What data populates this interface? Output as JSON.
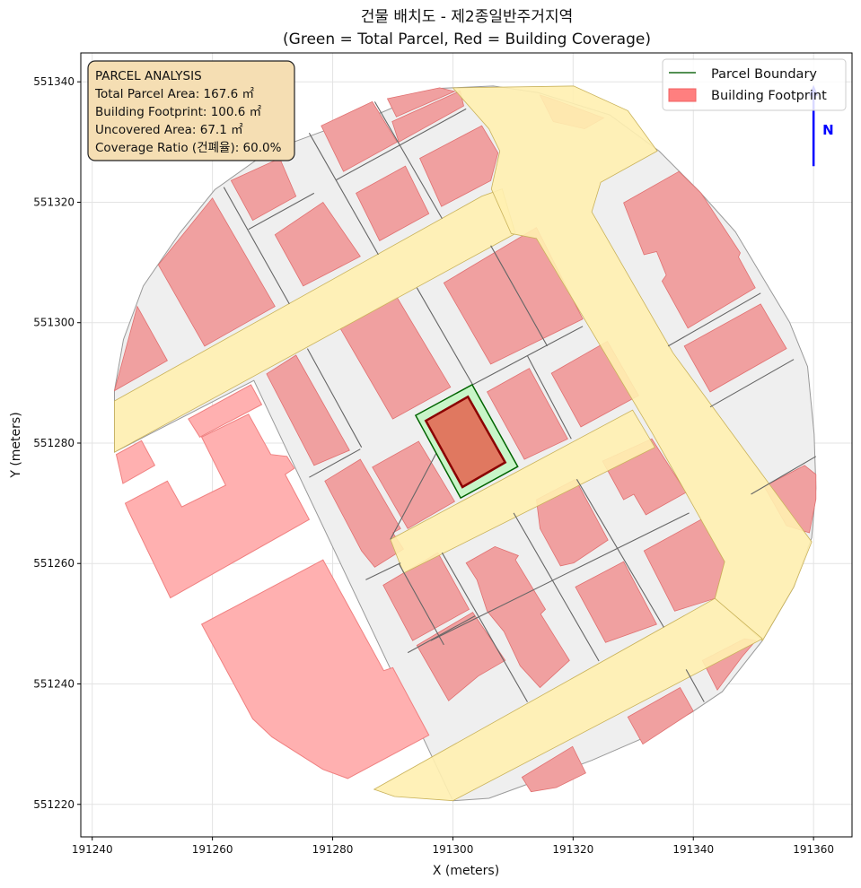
{
  "chart_data": {
    "type": "map-polygons",
    "title": "건물 배치도 - 제2종일반주거지역",
    "subtitle": "(Green = Total Parcel, Red = Building Coverage)",
    "xlabel": "X (meters)",
    "ylabel": "Y (meters)",
    "xlim": [
      191238.1,
      191366.4
    ],
    "ylim": [
      551214.6,
      551344.8
    ],
    "xticks": [
      191240,
      191260,
      191280,
      191300,
      191320,
      191340,
      191360
    ],
    "yticks": [
      551220,
      551240,
      551260,
      551280,
      551300,
      551320,
      551340
    ],
    "grid": true,
    "origin": [
      191240,
      551220
    ],
    "coords_note": "polygon vertices are meter offsets from origin",
    "legend": {
      "placement": "top-right",
      "entries": [
        {
          "label": "Parcel Boundary",
          "color": "#1a6b1a",
          "kind": "line"
        },
        {
          "label": "Building Footprint",
          "color": "#ff7f7f",
          "kind": "patch"
        }
      ]
    },
    "info_box": {
      "placement": "top-left",
      "lines": [
        "PARCEL ANALYSIS",
        "Total Parcel Area: 167.6 ㎡",
        "Building Footprint: 100.6 ㎡",
        "Uncovered Area: 67.1 ㎡",
        "Coverage Ratio (건폐율): 60.0%"
      ]
    },
    "north_arrow": {
      "label": "N",
      "x": 191360,
      "y_from": 551326,
      "y_to": 551338,
      "color": "#0000ff"
    },
    "colors": {
      "parcels_fill": "#efefef",
      "road_fill": "#fff0b0",
      "road_edge": "#c9b25a",
      "building_fill": "#f0a0a0",
      "building_edge": "#e07070",
      "outside_building_fill": "#ffb0b0",
      "parcel_line": "#666666",
      "subject_parcel_fill": "#c8f5c8",
      "subject_parcel_edge": "#006400",
      "subject_building_fill": "#e07860",
      "subject_building_edge": "#8b0000"
    },
    "parcel_area": [
      [
        3.7,
        68.7
      ],
      [
        5.2,
        77.2
      ],
      [
        8.5,
        86.1
      ],
      [
        14.5,
        94.8
      ],
      [
        20.4,
        102.1
      ],
      [
        29.4,
        108.5
      ],
      [
        38.4,
        111.8
      ],
      [
        48.1,
        114.9
      ],
      [
        57.5,
        118.9
      ],
      [
        66.7,
        119.3
      ],
      [
        74.2,
        118.2
      ],
      [
        86.1,
        114.5
      ],
      [
        94.3,
        108.5
      ],
      [
        101.0,
        101.8
      ],
      [
        107.0,
        95.1
      ],
      [
        111.5,
        87.6
      ],
      [
        116.0,
        80.1
      ],
      [
        119.0,
        72.7
      ],
      [
        120.1,
        61.5
      ],
      [
        120.4,
        52.5
      ],
      [
        119.7,
        44.3
      ],
      [
        116.7,
        36.1
      ],
      [
        111.5,
        27.2
      ],
      [
        104.8,
        18.7
      ],
      [
        99.6,
        15.2
      ],
      [
        92.1,
        11.2
      ],
      [
        83.1,
        7.3
      ],
      [
        74.2,
        4.0
      ],
      [
        66.0,
        1.0
      ],
      [
        60.0,
        0.6
      ],
      [
        26.9,
        70.4
      ],
      [
        3.7,
        58.5
      ]
    ],
    "roads": [
      [
        [
          3.7,
          67.0
        ],
        [
          64.8,
          101.0
        ],
        [
          68.2,
          102.2
        ],
        [
          70.4,
          94.8
        ],
        [
          3.7,
          58.5
        ]
      ],
      [
        [
          60.0,
          119.0
        ],
        [
          80.1,
          119.3
        ],
        [
          89.1,
          115.2
        ],
        [
          94.0,
          108.5
        ],
        [
          84.6,
          103.3
        ],
        [
          83.1,
          98.4
        ],
        [
          96.6,
          75.0
        ],
        [
          119.7,
          43.6
        ],
        [
          116.7,
          36.1
        ],
        [
          111.5,
          27.2
        ],
        [
          103.6,
          34.2
        ],
        [
          105.2,
          40.3
        ],
        [
          93.1,
          61.8
        ],
        [
          73.9,
          94.0
        ],
        [
          69.7,
          94.8
        ],
        [
          66.4,
          102.2
        ],
        [
          67.8,
          108.5
        ],
        [
          66.0,
          112.2
        ]
      ],
      [
        [
          49.6,
          44.0
        ],
        [
          89.9,
          65.5
        ],
        [
          93.6,
          59.3
        ],
        [
          51.8,
          38.4
        ]
      ],
      [
        [
          46.9,
          2.5
        ],
        [
          103.6,
          34.2
        ],
        [
          111.5,
          27.5
        ],
        [
          60.0,
          0.6
        ],
        [
          50.3,
          1.3
        ]
      ]
    ],
    "parcel_lines": [
      [
        [
          21.9,
          102.5
        ],
        [
          32.8,
          83.1
        ]
      ],
      [
        [
          36.1,
          111.5
        ],
        [
          47.6,
          91.3
        ]
      ],
      [
        [
          47.0,
          116.7
        ],
        [
          58.2,
          97.3
        ]
      ],
      [
        [
          26.0,
          95.5
        ],
        [
          36.9,
          101.5
        ]
      ],
      [
        [
          40.6,
          103.7
        ],
        [
          62.2,
          115.5
        ]
      ],
      [
        [
          35.8,
          75.7
        ],
        [
          44.8,
          59.3
        ]
      ],
      [
        [
          54.0,
          85.8
        ],
        [
          63.3,
          69.7
        ]
      ],
      [
        [
          66.3,
          92.8
        ],
        [
          75.7,
          76.1
        ]
      ],
      [
        [
          63.3,
          69.7
        ],
        [
          81.6,
          79.4
        ]
      ],
      [
        [
          72.4,
          74.5
        ],
        [
          79.7,
          60.7
        ]
      ],
      [
        [
          95.8,
          76.1
        ],
        [
          111.2,
          84.9
        ]
      ],
      [
        [
          102.8,
          66.0
        ],
        [
          116.7,
          73.9
        ]
      ],
      [
        [
          70.1,
          48.4
        ],
        [
          84.3,
          23.8
        ]
      ],
      [
        [
          80.6,
          54.0
        ],
        [
          95.1,
          29.4
        ]
      ],
      [
        [
          58.2,
          41.8
        ],
        [
          72.4,
          17.0
        ]
      ],
      [
        [
          56.3,
          27.2
        ],
        [
          99.3,
          48.4
        ]
      ],
      [
        [
          109.6,
          51.5
        ],
        [
          120.4,
          57.8
        ]
      ],
      [
        [
          98.8,
          22.4
        ],
        [
          101.8,
          17.0
        ]
      ],
      [
        [
          36.1,
          54.3
        ],
        [
          44.6,
          59.0
        ]
      ],
      [
        [
          45.5,
          37.3
        ],
        [
          51.3,
          40.1
        ]
      ],
      [
        [
          52.5,
          25.2
        ],
        [
          63.7,
          31.3
        ]
      ],
      [
        [
          49.6,
          44.0
        ],
        [
          63.3,
          69.7
        ]
      ],
      [
        [
          51.0,
          40.0
        ],
        [
          58.5,
          26.5
        ]
      ]
    ],
    "buildings": [
      [
        [
          3.7,
          68.7
        ],
        [
          7.5,
          82.7
        ],
        [
          12.5,
          73.7
        ]
      ],
      [
        [
          11.0,
          89.6
        ],
        [
          20.0,
          100.7
        ],
        [
          30.4,
          82.7
        ],
        [
          18.7,
          76.1
        ]
      ],
      [
        [
          23.1,
          103.6
        ],
        [
          31.2,
          107.3
        ],
        [
          33.9,
          101.0
        ],
        [
          26.7,
          97.0
        ]
      ],
      [
        [
          30.4,
          94.6
        ],
        [
          38.4,
          100.0
        ],
        [
          44.6,
          91.0
        ],
        [
          35.1,
          86.1
        ]
      ],
      [
        [
          38.1,
          112.7
        ],
        [
          46.6,
          116.7
        ],
        [
          50.7,
          110.0
        ],
        [
          41.8,
          105.1
        ]
      ],
      [
        [
          49.1,
          117.2
        ],
        [
          57.8,
          119.0
        ],
        [
          60.3,
          118.4
        ],
        [
          50.6,
          114.2
        ]
      ],
      [
        [
          49.9,
          113.4
        ],
        [
          61.2,
          118.5
        ],
        [
          61.8,
          116.0
        ],
        [
          51.0,
          110.0
        ]
      ],
      [
        [
          54.5,
          107.3
        ],
        [
          64.8,
          112.7
        ],
        [
          67.5,
          108.2
        ],
        [
          66.3,
          103.6
        ],
        [
          58.1,
          99.3
        ]
      ],
      [
        [
          43.9,
          101.5
        ],
        [
          52.1,
          106.0
        ],
        [
          56.0,
          98.1
        ],
        [
          47.8,
          93.6
        ]
      ],
      [
        [
          88.4,
          99.9
        ],
        [
          97.6,
          105.1
        ],
        [
          101.3,
          101.5
        ],
        [
          107.8,
          91.6
        ],
        [
          107.5,
          90.9
        ],
        [
          110.3,
          85.8
        ],
        [
          99.1,
          79.1
        ],
        [
          94.8,
          86.9
        ],
        [
          95.5,
          87.9
        ],
        [
          93.9,
          91.8
        ],
        [
          91.8,
          91.3
        ]
      ],
      [
        [
          98.5,
          76.1
        ],
        [
          111.2,
          83.1
        ],
        [
          115.5,
          75.7
        ],
        [
          102.8,
          68.5
        ]
      ],
      [
        [
          74.5,
          117.8
        ],
        [
          76.4,
          117.2
        ],
        [
          85.1,
          114.0
        ],
        [
          81.9,
          112.2
        ],
        [
          76.7,
          113.4
        ]
      ],
      [
        [
          41.3,
          79.0
        ],
        [
          50.7,
          84.2
        ],
        [
          59.6,
          69.3
        ],
        [
          50.0,
          64.0
        ]
      ],
      [
        [
          58.5,
          86.6
        ],
        [
          73.9,
          95.8
        ],
        [
          81.6,
          80.6
        ],
        [
          66.3,
          73.1
        ]
      ],
      [
        [
          29.0,
          71.5
        ],
        [
          33.9,
          74.6
        ],
        [
          42.8,
          58.8
        ],
        [
          36.9,
          56.3
        ]
      ],
      [
        [
          65.7,
          68.5
        ],
        [
          72.7,
          72.4
        ],
        [
          79.1,
          60.7
        ],
        [
          71.9,
          57.3
        ]
      ],
      [
        [
          76.4,
          71.6
        ],
        [
          85.7,
          76.9
        ],
        [
          90.9,
          67.9
        ],
        [
          81.3,
          62.7
        ]
      ],
      [
        [
          38.7,
          53.7
        ],
        [
          44.6,
          57.3
        ],
        [
          51.3,
          45.8
        ],
        [
          50.0,
          45.1
        ],
        [
          51.8,
          42.4
        ],
        [
          47.0,
          39.4
        ],
        [
          44.8,
          42.1
        ]
      ],
      [
        [
          46.6,
          56.0
        ],
        [
          54.3,
          60.3
        ],
        [
          60.3,
          50.3
        ],
        [
          52.5,
          45.8
        ]
      ],
      [
        [
          48.4,
          36.4
        ],
        [
          57.5,
          41.8
        ],
        [
          62.7,
          32.4
        ],
        [
          53.3,
          27.2
        ]
      ],
      [
        [
          54.0,
          26.4
        ],
        [
          63.3,
          31.9
        ],
        [
          68.7,
          23.9
        ],
        [
          64.2,
          21.3
        ],
        [
          59.3,
          17.2
        ]
      ],
      [
        [
          62.2,
          40.1
        ],
        [
          67.0,
          42.8
        ],
        [
          70.9,
          41.3
        ],
        [
          70.4,
          40.6
        ],
        [
          75.4,
          32.4
        ],
        [
          74.6,
          31.6
        ],
        [
          79.4,
          23.9
        ],
        [
          74.5,
          19.4
        ],
        [
          71.2,
          23.0
        ],
        [
          68.5,
          28.7
        ],
        [
          65.7,
          32.1
        ],
        [
          64.0,
          37.3
        ]
      ],
      [
        [
          73.9,
          50.6
        ],
        [
          80.4,
          54.0
        ],
        [
          85.8,
          43.9
        ],
        [
          80.1,
          40.1
        ],
        [
          77.9,
          39.6
        ],
        [
          74.5,
          45.8
        ]
      ],
      [
        [
          84.9,
          57.0
        ],
        [
          93.1,
          60.7
        ],
        [
          98.8,
          51.8
        ],
        [
          92.1,
          48.1
        ],
        [
          90.1,
          51.5
        ],
        [
          88.4,
          50.6
        ]
      ],
      [
        [
          80.4,
          36.1
        ],
        [
          88.4,
          40.3
        ],
        [
          93.9,
          29.9
        ],
        [
          85.4,
          26.9
        ]
      ],
      [
        [
          91.8,
          42.1
        ],
        [
          101.3,
          47.3
        ],
        [
          105.2,
          40.3
        ],
        [
          103.6,
          34.2
        ],
        [
          96.9,
          32.1
        ]
      ],
      [
        [
          111.8,
          52.8
        ],
        [
          118.5,
          56.3
        ],
        [
          120.4,
          54.8
        ],
        [
          120.4,
          50.7
        ],
        [
          119.3,
          45.1
        ],
        [
          115.5,
          46.3
        ]
      ],
      [
        [
          101.5,
          23.9
        ],
        [
          108.5,
          27.5
        ],
        [
          110.4,
          27.2
        ],
        [
          108.1,
          24.5
        ],
        [
          104.0,
          19.0
        ]
      ],
      [
        [
          89.1,
          14.5
        ],
        [
          97.8,
          19.4
        ],
        [
          100.0,
          15.5
        ],
        [
          91.6,
          10.0
        ]
      ],
      [
        [
          71.5,
          4.5
        ],
        [
          79.9,
          9.6
        ],
        [
          82.1,
          5.2
        ],
        [
          77.2,
          2.8
        ],
        [
          73.0,
          2.1
        ]
      ]
    ],
    "outside_buildings": [
      [
        [
          4.0,
          58.1
        ],
        [
          8.2,
          60.4
        ],
        [
          10.4,
          56.3
        ],
        [
          5.1,
          53.3
        ]
      ],
      [
        [
          16.0,
          64.0
        ],
        [
          26.4,
          69.7
        ],
        [
          28.2,
          66.4
        ],
        [
          17.9,
          61.0
        ]
      ],
      [
        [
          18.2,
          61.0
        ],
        [
          26.0,
          64.8
        ],
        [
          29.7,
          58.1
        ],
        [
          32.4,
          57.8
        ],
        [
          33.6,
          55.8
        ],
        [
          32.1,
          54.8
        ],
        [
          36.1,
          47.3
        ],
        [
          13.0,
          34.3
        ],
        [
          6.0,
          48.8
        ],
        [
          5.5,
          50.0
        ],
        [
          12.5,
          53.7
        ],
        [
          14.9,
          49.4
        ],
        [
          22.2,
          53.0
        ]
      ],
      [
        [
          18.2,
          29.9
        ],
        [
          38.4,
          40.6
        ],
        [
          48.5,
          22.2
        ],
        [
          50.0,
          22.7
        ],
        [
          56.0,
          11.5
        ],
        [
          42.5,
          4.3
        ],
        [
          38.4,
          5.8
        ],
        [
          29.9,
          11.2
        ],
        [
          26.7,
          14.2
        ]
      ]
    ],
    "subject_parcel": [
      [
        53.8,
        64.6
      ],
      [
        63.2,
        69.7
      ],
      [
        70.8,
        56.1
      ],
      [
        61.3,
        50.9
      ]
    ],
    "subject_building": [
      [
        55.5,
        63.7
      ],
      [
        62.5,
        67.7
      ],
      [
        68.7,
        56.8
      ],
      [
        61.6,
        52.7
      ]
    ]
  }
}
